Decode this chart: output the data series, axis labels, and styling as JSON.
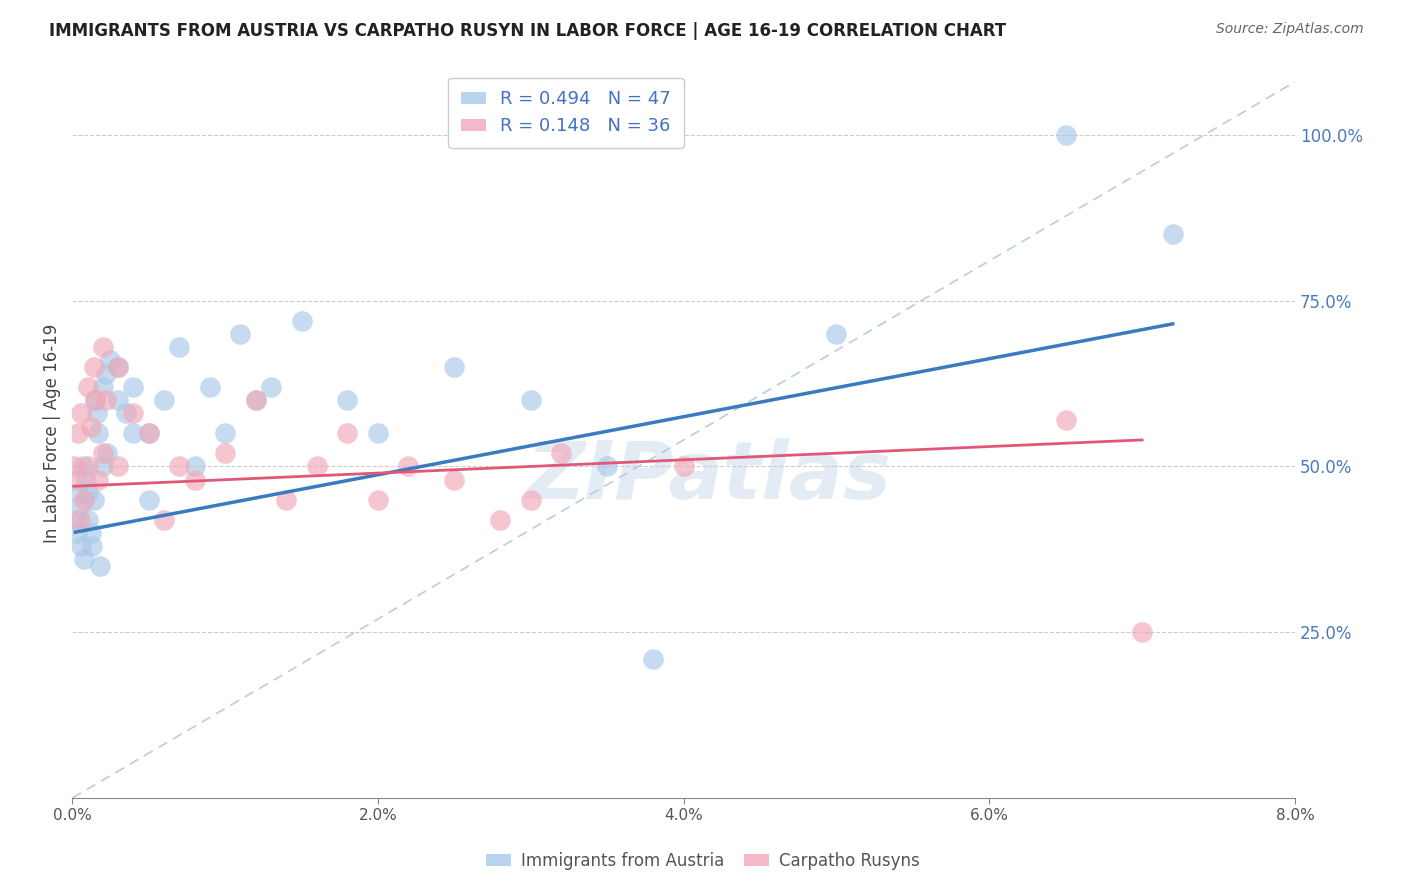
{
  "title": "IMMIGRANTS FROM AUSTRIA VS CARPATHO RUSYN IN LABOR FORCE | AGE 16-19 CORRELATION CHART",
  "source": "Source: ZipAtlas.com",
  "ylabel": "In Labor Force | Age 16-19",
  "xlim": [
    0.0,
    0.08
  ],
  "ylim": [
    0.0,
    1.1
  ],
  "xtick_labels": [
    "0.0%",
    "2.0%",
    "4.0%",
    "6.0%",
    "8.0%"
  ],
  "xtick_vals": [
    0.0,
    0.02,
    0.04,
    0.06,
    0.08
  ],
  "ytick_labels_right": [
    "25.0%",
    "50.0%",
    "75.0%",
    "100.0%"
  ],
  "ytick_vals_right": [
    0.25,
    0.5,
    0.75,
    1.0
  ],
  "legend_R1": "R = 0.494",
  "legend_N1": "N = 47",
  "legend_R2": "R = 0.148",
  "legend_N2": "N = 36",
  "blue_scatter_color": "#a8c8e8",
  "blue_line_color": "#3a7abf",
  "pink_scatter_color": "#f0a8b8",
  "pink_line_color": "#e05878",
  "ref_line_color": "#b0c8e0",
  "watermark": "ZIPatlas",
  "austria_x": [
    0.0002,
    0.0003,
    0.0004,
    0.0005,
    0.0006,
    0.0007,
    0.0008,
    0.0009,
    0.001,
    0.001,
    0.0012,
    0.0013,
    0.0014,
    0.0015,
    0.0016,
    0.0017,
    0.0018,
    0.002,
    0.002,
    0.0022,
    0.0023,
    0.0025,
    0.003,
    0.003,
    0.0035,
    0.004,
    0.004,
    0.005,
    0.005,
    0.006,
    0.007,
    0.008,
    0.009,
    0.01,
    0.011,
    0.012,
    0.013,
    0.015,
    0.018,
    0.02,
    0.025,
    0.03,
    0.035,
    0.038,
    0.05,
    0.065,
    0.072
  ],
  "austria_y": [
    0.42,
    0.4,
    0.46,
    0.44,
    0.38,
    0.5,
    0.36,
    0.48,
    0.46,
    0.42,
    0.4,
    0.38,
    0.45,
    0.6,
    0.58,
    0.55,
    0.35,
    0.5,
    0.62,
    0.64,
    0.52,
    0.66,
    0.65,
    0.6,
    0.58,
    0.62,
    0.55,
    0.55,
    0.45,
    0.6,
    0.68,
    0.5,
    0.62,
    0.55,
    0.7,
    0.6,
    0.62,
    0.72,
    0.6,
    0.55,
    0.65,
    0.6,
    0.5,
    0.21,
    0.7,
    1.0,
    0.85
  ],
  "rusyn_x": [
    0.0001,
    0.0003,
    0.0004,
    0.0005,
    0.0006,
    0.0008,
    0.001,
    0.001,
    0.0012,
    0.0014,
    0.0015,
    0.0017,
    0.002,
    0.002,
    0.0022,
    0.003,
    0.003,
    0.004,
    0.005,
    0.006,
    0.007,
    0.008,
    0.01,
    0.012,
    0.014,
    0.016,
    0.018,
    0.02,
    0.022,
    0.025,
    0.028,
    0.03,
    0.032,
    0.04,
    0.065,
    0.07
  ],
  "rusyn_y": [
    0.5,
    0.48,
    0.55,
    0.42,
    0.58,
    0.45,
    0.62,
    0.5,
    0.56,
    0.65,
    0.6,
    0.48,
    0.68,
    0.52,
    0.6,
    0.65,
    0.5,
    0.58,
    0.55,
    0.42,
    0.5,
    0.48,
    0.52,
    0.6,
    0.45,
    0.5,
    0.55,
    0.45,
    0.5,
    0.48,
    0.42,
    0.45,
    0.52,
    0.5,
    0.57,
    0.25
  ]
}
